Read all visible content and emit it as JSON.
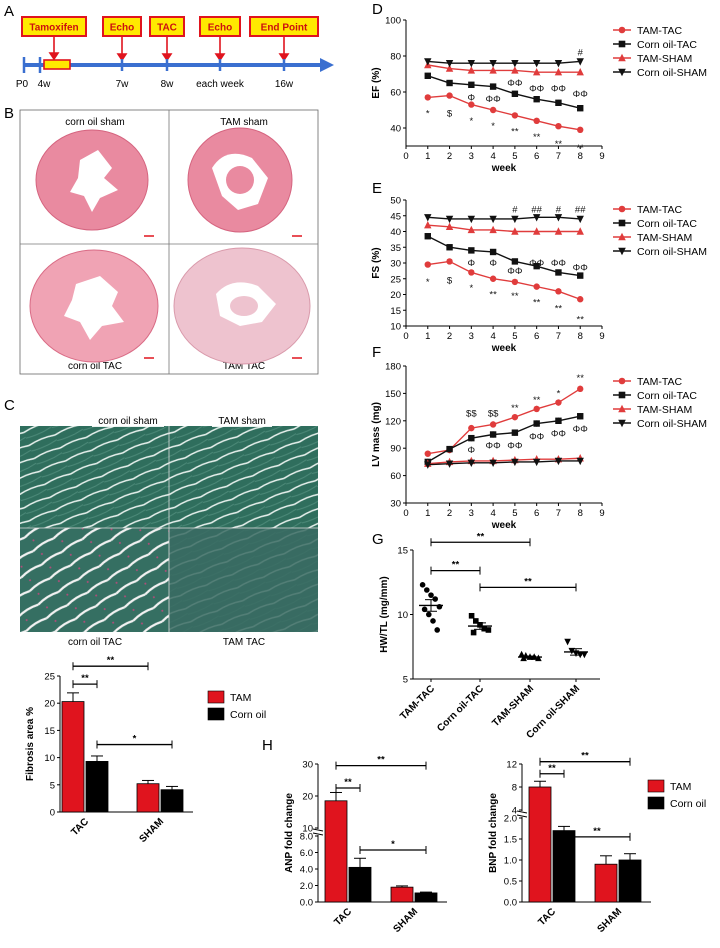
{
  "colors": {
    "tam_tac": "#e03c3c",
    "corn_tac": "#111111",
    "tam_sham": "#e03c3c",
    "corn_sham": "#111111",
    "bar_tam": "#e0141e",
    "bar_corn": "#000000",
    "timeline": "#3a6fd0",
    "box_fill": "#ffe900",
    "box_stroke": "#e0141e",
    "he_stain": "#e8889e",
    "trichrome": "#2f6e5d"
  },
  "panels": {
    "A": {
      "letter": "A",
      "boxes": [
        "Tamoxifen",
        "Echo",
        "TAC",
        "Echo",
        "End Point"
      ],
      "ticks": [
        "P0",
        "4w",
        "7w",
        "8w",
        "each week",
        "16w"
      ]
    },
    "B": {
      "letter": "B",
      "captions": [
        "corn oil sham",
        "TAM sham",
        "corn oil TAC",
        "TAM TAC"
      ]
    },
    "C": {
      "letter": "C",
      "captions": [
        "corn oil sham",
        "TAM sham",
        "corn oil TAC",
        "TAM TAC"
      ]
    },
    "D": {
      "letter": "D"
    },
    "E": {
      "letter": "E"
    },
    "F": {
      "letter": "F"
    },
    "G": {
      "letter": "G"
    },
    "H": {
      "letter": "H"
    }
  },
  "chart_data": [
    {
      "id": "D",
      "type": "line",
      "xlabel": "week",
      "ylabel": "EF (%)",
      "xlim": [
        0,
        9
      ],
      "ylim": [
        30,
        100
      ],
      "xticks": [
        0,
        1,
        2,
        3,
        4,
        5,
        6,
        7,
        8,
        9
      ],
      "yticks": [
        40,
        60,
        80,
        100
      ],
      "x": [
        1,
        2,
        3,
        4,
        5,
        6,
        7,
        8
      ],
      "series": [
        {
          "name": "TAM-TAC",
          "marker": "circle",
          "color": "#e03c3c",
          "values": [
            57,
            58,
            53,
            50,
            47,
            44,
            41,
            39
          ]
        },
        {
          "name": "Corn oil-TAC",
          "marker": "square",
          "color": "#111111",
          "values": [
            69,
            65,
            64,
            63,
            59,
            56,
            54,
            51
          ]
        },
        {
          "name": "TAM-SHAM",
          "marker": "triangle-up",
          "color": "#e03c3c",
          "values": [
            75,
            73,
            72,
            72,
            72,
            71,
            71,
            71
          ]
        },
        {
          "name": "Corn oil-SHAM",
          "marker": "triangle-down",
          "color": "#111111",
          "values": [
            77,
            76,
            76,
            76,
            76,
            76,
            76,
            77
          ]
        }
      ],
      "annotations": [
        {
          "x": 1,
          "y": 48,
          "text": "*",
          "color": "#111"
        },
        {
          "x": 2,
          "y": 48,
          "text": "$",
          "color": "#111"
        },
        {
          "x": 3,
          "y": 44,
          "text": "*",
          "color": "#111"
        },
        {
          "x": 3,
          "y": 57,
          "text": "Φ",
          "color": "#111"
        },
        {
          "x": 4,
          "y": 41,
          "text": "*",
          "color": "#111"
        },
        {
          "x": 4,
          "y": 56,
          "text": "ΦΦ",
          "color": "#111"
        },
        {
          "x": 5,
          "y": 38,
          "text": "**",
          "color": "#111"
        },
        {
          "x": 5,
          "y": 65,
          "text": "ΦΦ",
          "color": "#111"
        },
        {
          "x": 6,
          "y": 35,
          "text": "**",
          "color": "#111"
        },
        {
          "x": 6,
          "y": 62,
          "text": "ΦΦ",
          "color": "#111"
        },
        {
          "x": 7,
          "y": 31,
          "text": "**",
          "color": "#111"
        },
        {
          "x": 7,
          "y": 62,
          "text": "ΦΦ",
          "color": "#111"
        },
        {
          "x": 8,
          "y": 29,
          "text": "**",
          "color": "#111"
        },
        {
          "x": 8,
          "y": 59,
          "text": "ΦΦ",
          "color": "#111"
        },
        {
          "x": 8,
          "y": 82,
          "text": "#",
          "color": "#111"
        }
      ],
      "legend": [
        "TAM-TAC",
        "Corn oil-TAC",
        "TAM-SHAM",
        "Corn oil-SHAM"
      ]
    },
    {
      "id": "E",
      "type": "line",
      "xlabel": "week",
      "ylabel": "FS (%)",
      "xlim": [
        0,
        9
      ],
      "ylim": [
        10,
        50
      ],
      "xticks": [
        0,
        1,
        2,
        3,
        4,
        5,
        6,
        7,
        8,
        9
      ],
      "yticks": [
        10,
        15,
        20,
        25,
        30,
        35,
        40,
        45,
        50
      ],
      "x": [
        1,
        2,
        3,
        4,
        5,
        6,
        7,
        8
      ],
      "series": [
        {
          "name": "TAM-TAC",
          "marker": "circle",
          "color": "#e03c3c",
          "values": [
            29.5,
            30.5,
            27,
            25,
            24,
            22.5,
            21,
            18.5
          ]
        },
        {
          "name": "Corn oil-TAC",
          "marker": "square",
          "color": "#111111",
          "values": [
            38.5,
            35,
            34,
            33.5,
            30.5,
            29,
            27,
            26
          ]
        },
        {
          "name": "TAM-SHAM",
          "marker": "triangle-up",
          "color": "#e03c3c",
          "values": [
            42,
            41.5,
            40.5,
            40.5,
            40,
            40,
            40,
            40
          ]
        },
        {
          "name": "Corn oil-SHAM",
          "marker": "triangle-down",
          "color": "#111111",
          "values": [
            44.5,
            44,
            44,
            44,
            44,
            44.5,
            44.5,
            44
          ]
        }
      ],
      "annotations": [
        {
          "x": 1,
          "y": 24,
          "text": "*",
          "color": "#111"
        },
        {
          "x": 2,
          "y": 24.5,
          "text": "$",
          "color": "#111"
        },
        {
          "x": 3,
          "y": 22,
          "text": "*",
          "color": "#111"
        },
        {
          "x": 3,
          "y": 30,
          "text": "Φ",
          "color": "#111"
        },
        {
          "x": 4,
          "y": 20,
          "text": "**",
          "color": "#111"
        },
        {
          "x": 4,
          "y": 30,
          "text": "Φ",
          "color": "#111"
        },
        {
          "x": 5,
          "y": 19.5,
          "text": "**",
          "color": "#111"
        },
        {
          "x": 5,
          "y": 27.5,
          "text": "ΦΦ",
          "color": "#111"
        },
        {
          "x": 5,
          "y": 47,
          "text": "#",
          "color": "#111"
        },
        {
          "x": 6,
          "y": 17.5,
          "text": "**",
          "color": "#111"
        },
        {
          "x": 6,
          "y": 30,
          "text": "ΦΦ",
          "color": "#111"
        },
        {
          "x": 6,
          "y": 47,
          "text": "##",
          "color": "#111"
        },
        {
          "x": 7,
          "y": 15.5,
          "text": "**",
          "color": "#111"
        },
        {
          "x": 7,
          "y": 30,
          "text": "ΦΦ",
          "color": "#111"
        },
        {
          "x": 7,
          "y": 47,
          "text": "#",
          "color": "#111"
        },
        {
          "x": 8,
          "y": 12,
          "text": "**",
          "color": "#111"
        },
        {
          "x": 8,
          "y": 28.5,
          "text": "ΦΦ",
          "color": "#111"
        },
        {
          "x": 8,
          "y": 47,
          "text": "##",
          "color": "#111"
        }
      ],
      "legend": [
        "TAM-TAC",
        "Corn oil-TAC",
        "TAM-SHAM",
        "Corn oil-SHAM"
      ]
    },
    {
      "id": "F",
      "type": "line",
      "xlabel": "week",
      "ylabel": "LV mass (mg)",
      "xlim": [
        0,
        9
      ],
      "ylim": [
        30,
        180
      ],
      "xticks": [
        0,
        1,
        2,
        3,
        4,
        5,
        6,
        7,
        8,
        9
      ],
      "yticks": [
        30,
        60,
        90,
        120,
        150,
        180
      ],
      "x": [
        1,
        2,
        3,
        4,
        5,
        6,
        7,
        8
      ],
      "series": [
        {
          "name": "TAM-TAC",
          "marker": "circle",
          "color": "#e03c3c",
          "values": [
            84,
            88,
            112,
            116,
            124,
            133,
            140,
            155
          ]
        },
        {
          "name": "Corn oil-TAC",
          "marker": "square",
          "color": "#111111",
          "values": [
            75,
            89,
            101,
            105,
            107,
            117,
            120,
            125
          ]
        },
        {
          "name": "TAM-SHAM",
          "marker": "triangle-up",
          "color": "#e03c3c",
          "values": [
            73,
            75,
            76,
            76,
            77,
            78,
            78,
            79
          ]
        },
        {
          "name": "Corn oil-SHAM",
          "marker": "triangle-down",
          "color": "#111111",
          "values": [
            72,
            73,
            74,
            74,
            75,
            75,
            76,
            76
          ]
        }
      ],
      "annotations": [
        {
          "x": 3,
          "y": 128,
          "text": "$$",
          "color": "#111"
        },
        {
          "x": 4,
          "y": 128,
          "text": "$$",
          "color": "#111"
        },
        {
          "x": 5,
          "y": 134,
          "text": "**",
          "color": "#111"
        },
        {
          "x": 6,
          "y": 143,
          "text": "**",
          "color": "#111"
        },
        {
          "x": 7,
          "y": 150,
          "text": "*",
          "color": "#111"
        },
        {
          "x": 8,
          "y": 167,
          "text": "**",
          "color": "#111"
        },
        {
          "x": 3,
          "y": 88,
          "text": "Φ",
          "color": "#111"
        },
        {
          "x": 4,
          "y": 93,
          "text": "ΦΦ",
          "color": "#111"
        },
        {
          "x": 5,
          "y": 93,
          "text": "ΦΦ",
          "color": "#111"
        },
        {
          "x": 6,
          "y": 103,
          "text": "ΦΦ",
          "color": "#111"
        },
        {
          "x": 7,
          "y": 106,
          "text": "ΦΦ",
          "color": "#111"
        },
        {
          "x": 8,
          "y": 111,
          "text": "ΦΦ",
          "color": "#111"
        }
      ],
      "legend": [
        "TAM-TAC",
        "Corn oil-TAC",
        "TAM-SHAM",
        "Corn oil-SHAM"
      ]
    },
    {
      "id": "G",
      "type": "scatter",
      "ylabel": "HW/TL (mg/mm)",
      "ylim": [
        5,
        15
      ],
      "yticks": [
        5,
        10,
        15
      ],
      "categories": [
        "TAM-TAC",
        "Corn oil-TAC",
        "TAM-SHAM",
        "Corn oil-SHAM"
      ],
      "groups": [
        {
          "name": "TAM-TAC",
          "marker": "circle",
          "mean": 10.7,
          "sem": 0.45,
          "points": [
            12.3,
            11.9,
            11.5,
            11.2,
            10.6,
            10.4,
            10.0,
            9.5,
            8.8
          ]
        },
        {
          "name": "Corn oil-TAC",
          "marker": "square",
          "mean": 9.1,
          "sem": 0.25,
          "points": [
            9.9,
            9.5,
            9.2,
            8.9,
            8.8,
            8.6
          ]
        },
        {
          "name": "TAM-SHAM",
          "marker": "triangle-up",
          "mean": 6.7,
          "sem": 0.08,
          "points": [
            6.9,
            6.8,
            6.7,
            6.7,
            6.6,
            6.6
          ]
        },
        {
          "name": "Corn oil-SHAM",
          "marker": "triangle-down",
          "mean": 7.1,
          "sem": 0.25,
          "points": [
            7.9,
            7.2,
            7.0,
            6.9,
            6.9
          ]
        }
      ],
      "significance": [
        {
          "from": 0,
          "to": 1,
          "y": 13.4,
          "text": "**"
        },
        {
          "from": 0,
          "to": 2,
          "y": 15.6,
          "text": "**"
        },
        {
          "from": 1,
          "to": 3,
          "y": 12.1,
          "text": "**"
        }
      ]
    },
    {
      "id": "C-bar",
      "type": "bar",
      "ylabel": "Fibrosis area %",
      "categories": [
        "TAC",
        "SHAM"
      ],
      "ylim": [
        0,
        25
      ],
      "yticks": [
        0,
        5,
        10,
        15,
        20,
        25
      ],
      "series": [
        {
          "name": "TAM",
          "color": "#e0141e",
          "values": [
            20.3,
            5.2
          ],
          "errors": [
            1.6,
            0.6
          ]
        },
        {
          "name": "Corn oil",
          "color": "#000000",
          "values": [
            9.3,
            4.1
          ],
          "errors": [
            1.0,
            0.6
          ]
        }
      ],
      "significance": [
        {
          "x1": "TAC-TAM",
          "x2": "TAC-Corn oil",
          "y": 23.5,
          "text": "**"
        },
        {
          "x1": "TAC-TAM",
          "x2": "SHAM-TAM",
          "y": 26.8,
          "text": "**"
        },
        {
          "x1": "TAC-Corn oil",
          "x2": "SHAM-Corn oil",
          "y": 12.4,
          "text": "*"
        }
      ],
      "legend": [
        "TAM",
        "Corn oil"
      ]
    },
    {
      "id": "H-ANP",
      "type": "bar",
      "ylabel": "ANP fold change",
      "categories": [
        "TAC",
        "SHAM"
      ],
      "broken_axis": {
        "lower": [
          0,
          8
        ],
        "upper": [
          10,
          30
        ]
      },
      "yticks_lower": [
        0.0,
        2.0,
        4.0,
        6.0,
        8.0
      ],
      "yticks_upper": [
        10,
        20,
        30
      ],
      "series": [
        {
          "name": "TAM",
          "color": "#e0141e",
          "values": [
            18.5,
            1.8
          ],
          "errors": [
            2.6,
            0.15
          ]
        },
        {
          "name": "Corn oil",
          "color": "#000000",
          "values": [
            4.2,
            1.1
          ],
          "errors": [
            1.1,
            0.1
          ]
        }
      ],
      "significance": [
        {
          "x1": "TAC-TAM",
          "x2": "TAC-Corn oil",
          "y": "upper",
          "text": "**"
        },
        {
          "x1": "TAC-TAM",
          "x2": "SHAM-TAM",
          "y": "upper-top",
          "text": "**"
        },
        {
          "x1": "TAC-Corn oil",
          "x2": "SHAM-Corn oil",
          "y": 6.3,
          "text": "*"
        }
      ]
    },
    {
      "id": "H-BNP",
      "type": "bar",
      "ylabel": "BNP fold change",
      "categories": [
        "TAC",
        "SHAM"
      ],
      "broken_axis": {
        "lower": [
          0,
          2
        ],
        "upper": [
          4,
          12
        ]
      },
      "yticks_lower": [
        0.0,
        0.5,
        1.0,
        1.5,
        2.0
      ],
      "yticks_upper": [
        4,
        8,
        12
      ],
      "series": [
        {
          "name": "TAM",
          "color": "#e0141e",
          "values": [
            8.0,
            0.9
          ],
          "errors": [
            1.0,
            0.2
          ]
        },
        {
          "name": "Corn oil",
          "color": "#000000",
          "values": [
            1.7,
            1.0
          ],
          "errors": [
            0.1,
            0.15
          ]
        }
      ],
      "significance": [
        {
          "x1": "TAC-TAM",
          "x2": "TAC-Corn oil",
          "y": "upper",
          "text": "**"
        },
        {
          "x1": "TAC-TAM",
          "x2": "SHAM-Corn oil",
          "y": "upper-top",
          "text": "**"
        },
        {
          "x1": "TAC-Corn oil",
          "x2": "SHAM-Corn oil",
          "y": 1.5,
          "text": "**"
        }
      ],
      "legend": [
        "TAM",
        "Corn oil"
      ]
    }
  ]
}
